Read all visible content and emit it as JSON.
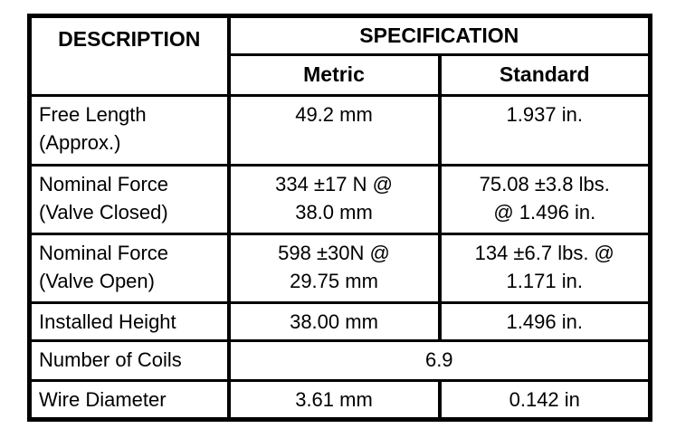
{
  "colors": {
    "background": "#ffffff",
    "border": "#000000",
    "text": "#000000"
  },
  "table": {
    "header": {
      "description": "DESCRIPTION",
      "specification": "SPECIFICATION",
      "metric": "Metric",
      "standard": "Standard"
    },
    "rows": [
      {
        "description": "Free Length\n(Approx.)",
        "metric": "49.2 mm",
        "standard": "1.937 in."
      },
      {
        "description": "Nominal Force\n(Valve Closed)",
        "metric": "334 ±17 N @\n38.0 mm",
        "standard": "75.08 ±3.8 lbs.\n@ 1.496 in."
      },
      {
        "description": "Nominal Force\n(Valve Open)",
        "metric": "598 ±30N @\n29.75 mm",
        "standard": "134 ±6.7 lbs. @\n1.171 in."
      },
      {
        "description": "Installed Height",
        "metric": "38.00 mm",
        "standard": "1.496 in."
      },
      {
        "description": "Number of Coils",
        "merged_value": "6.9"
      },
      {
        "description": "Wire Diameter",
        "metric": "3.61 mm",
        "standard": "0.142 in"
      }
    ]
  }
}
